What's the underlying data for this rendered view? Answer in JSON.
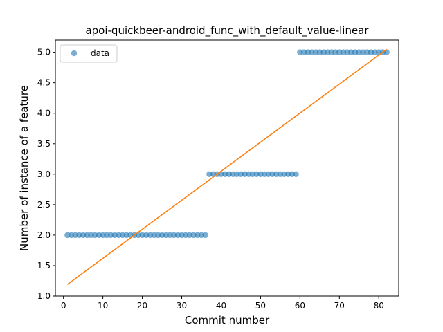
{
  "chart_data": {
    "type": "scatter",
    "title": "apoi-quickbeer-android_func_with_default_value-linear",
    "xlabel": "Commit number",
    "ylabel": "Number of instance of a feature",
    "xlim": [
      -2.05,
      85.05
    ],
    "ylim": [
      1.0,
      5.2
    ],
    "xticks": [
      "0",
      "10",
      "20",
      "30",
      "40",
      "50",
      "60",
      "70",
      "80"
    ],
    "yticks": [
      "1.0",
      "1.5",
      "2.0",
      "2.5",
      "3.0",
      "3.5",
      "4.0",
      "4.5",
      "5.0"
    ],
    "grid": false,
    "legend": {
      "placement": "top-left",
      "entries": [
        "data"
      ]
    },
    "series": [
      {
        "name": "data",
        "kind": "scatter",
        "color": "#1f77b4",
        "points": [
          [
            1,
            2
          ],
          [
            2,
            2
          ],
          [
            3,
            2
          ],
          [
            4,
            2
          ],
          [
            5,
            2
          ],
          [
            6,
            2
          ],
          [
            7,
            2
          ],
          [
            8,
            2
          ],
          [
            9,
            2
          ],
          [
            10,
            2
          ],
          [
            11,
            2
          ],
          [
            12,
            2
          ],
          [
            13,
            2
          ],
          [
            14,
            2
          ],
          [
            15,
            2
          ],
          [
            16,
            2
          ],
          [
            17,
            2
          ],
          [
            18,
            2
          ],
          [
            19,
            2
          ],
          [
            20,
            2
          ],
          [
            21,
            2
          ],
          [
            22,
            2
          ],
          [
            23,
            2
          ],
          [
            24,
            2
          ],
          [
            25,
            2
          ],
          [
            26,
            2
          ],
          [
            27,
            2
          ],
          [
            28,
            2
          ],
          [
            29,
            2
          ],
          [
            30,
            2
          ],
          [
            31,
            2
          ],
          [
            32,
            2
          ],
          [
            33,
            2
          ],
          [
            34,
            2
          ],
          [
            35,
            2
          ],
          [
            36,
            2
          ],
          [
            37,
            3
          ],
          [
            38,
            3
          ],
          [
            39,
            3
          ],
          [
            40,
            3
          ],
          [
            41,
            3
          ],
          [
            42,
            3
          ],
          [
            43,
            3
          ],
          [
            44,
            3
          ],
          [
            45,
            3
          ],
          [
            46,
            3
          ],
          [
            47,
            3
          ],
          [
            48,
            3
          ],
          [
            49,
            3
          ],
          [
            50,
            3
          ],
          [
            51,
            3
          ],
          [
            52,
            3
          ],
          [
            53,
            3
          ],
          [
            54,
            3
          ],
          [
            55,
            3
          ],
          [
            56,
            3
          ],
          [
            57,
            3
          ],
          [
            58,
            3
          ],
          [
            59,
            3
          ],
          [
            60,
            5
          ],
          [
            61,
            5
          ],
          [
            62,
            5
          ],
          [
            63,
            5
          ],
          [
            64,
            5
          ],
          [
            65,
            5
          ],
          [
            66,
            5
          ],
          [
            67,
            5
          ],
          [
            68,
            5
          ],
          [
            69,
            5
          ],
          [
            70,
            5
          ],
          [
            71,
            5
          ],
          [
            72,
            5
          ],
          [
            73,
            5
          ],
          [
            74,
            5
          ],
          [
            75,
            5
          ],
          [
            76,
            5
          ],
          [
            77,
            5
          ],
          [
            78,
            5
          ],
          [
            79,
            5
          ],
          [
            80,
            5
          ],
          [
            81,
            5
          ],
          [
            82,
            5
          ]
        ]
      },
      {
        "kind": "line",
        "color": "#ff7f0e",
        "points": [
          [
            1,
            1.19
          ],
          [
            82,
            5.05
          ]
        ]
      }
    ]
  }
}
